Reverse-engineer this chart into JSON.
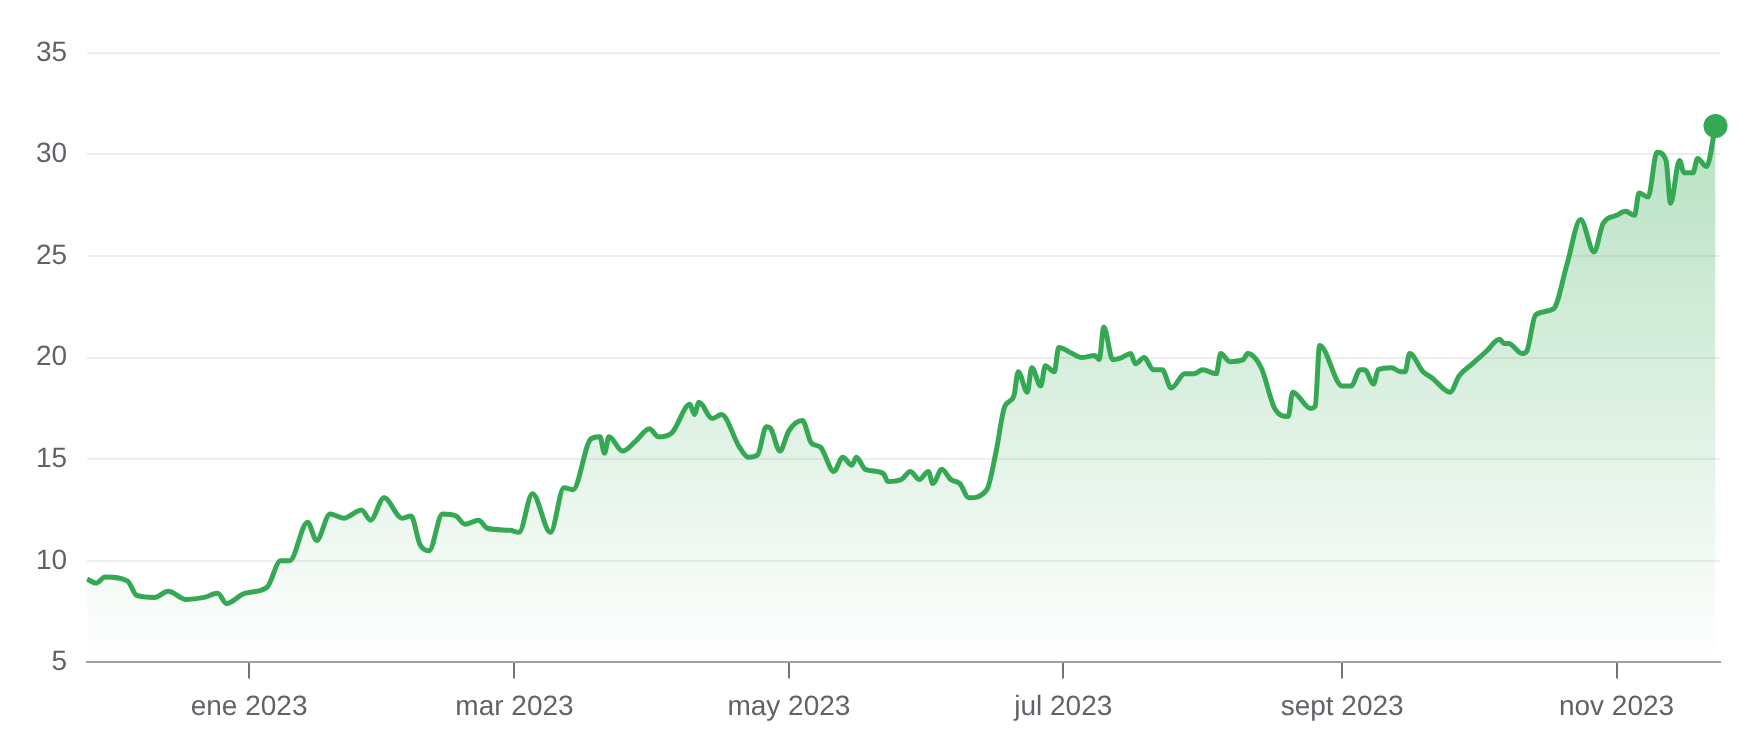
{
  "chart_data": {
    "type": "area",
    "x": [
      "2022-11-26",
      "2022-11-28",
      "2022-11-30",
      "2022-12-05",
      "2022-12-07",
      "2022-12-11",
      "2022-12-14",
      "2022-12-18",
      "2022-12-22",
      "2022-12-25",
      "2022-12-27",
      "2022-12-31",
      "2023-01-05",
      "2023-01-08",
      "2023-01-10",
      "2023-01-14",
      "2023-01-16",
      "2023-01-19",
      "2023-01-22",
      "2023-01-26",
      "2023-01-28",
      "2023-01-31",
      "2023-02-04",
      "2023-02-06",
      "2023-02-08",
      "2023-02-10",
      "2023-02-13",
      "2023-02-16",
      "2023-02-18",
      "2023-02-21",
      "2023-02-23",
      "2023-02-28",
      "2023-03-02",
      "2023-03-05",
      "2023-03-09",
      "2023-03-12",
      "2023-03-14",
      "2023-03-18",
      "2023-03-20",
      "2023-03-21",
      "2023-03-22",
      "2023-03-25",
      "2023-03-28",
      "2023-03-31",
      "2023-04-02",
      "2023-04-05",
      "2023-04-09",
      "2023-04-10",
      "2023-04-11",
      "2023-04-14",
      "2023-04-16",
      "2023-04-20",
      "2023-04-22",
      "2023-04-24",
      "2023-04-26",
      "2023-04-27",
      "2023-04-29",
      "2023-05-01",
      "2023-05-04",
      "2023-05-06",
      "2023-05-08",
      "2023-05-11",
      "2023-05-13",
      "2023-05-15",
      "2023-05-16",
      "2023-05-18",
      "2023-05-22",
      "2023-05-23",
      "2023-05-26",
      "2023-05-28",
      "2023-05-30",
      "2023-06-01",
      "2023-06-02",
      "2023-06-04",
      "2023-06-06",
      "2023-06-08",
      "2023-06-10",
      "2023-06-14",
      "2023-06-16",
      "2023-06-18",
      "2023-06-20",
      "2023-06-21",
      "2023-06-23",
      "2023-06-24",
      "2023-06-26",
      "2023-06-27",
      "2023-06-29",
      "2023-06-30",
      "2023-07-03",
      "2023-07-05",
      "2023-07-08",
      "2023-07-09",
      "2023-07-10",
      "2023-07-12",
      "2023-07-14",
      "2023-07-16",
      "2023-07-17",
      "2023-07-19",
      "2023-07-21",
      "2023-07-23",
      "2023-07-25",
      "2023-07-28",
      "2023-07-30",
      "2023-08-01",
      "2023-08-04",
      "2023-08-05",
      "2023-08-07",
      "2023-08-10",
      "2023-08-11",
      "2023-08-14",
      "2023-08-17",
      "2023-08-20",
      "2023-08-21",
      "2023-08-25",
      "2023-08-26",
      "2023-08-27",
      "2023-09-01",
      "2023-09-03",
      "2023-09-05",
      "2023-09-06",
      "2023-09-08",
      "2023-09-09",
      "2023-09-12",
      "2023-09-14",
      "2023-09-15",
      "2023-09-16",
      "2023-09-19",
      "2023-09-21",
      "2023-09-25",
      "2023-09-27",
      "2023-09-30",
      "2023-10-03",
      "2023-10-06",
      "2023-10-07",
      "2023-10-08",
      "2023-10-11",
      "2023-10-12",
      "2023-10-14",
      "2023-10-18",
      "2023-10-21",
      "2023-10-24",
      "2023-10-27",
      "2023-10-29",
      "2023-11-01",
      "2023-11-03",
      "2023-11-05",
      "2023-11-06",
      "2023-11-08",
      "2023-11-10",
      "2023-11-12",
      "2023-11-13",
      "2023-11-15",
      "2023-11-16",
      "2023-11-18",
      "2023-11-19",
      "2023-11-21",
      "2023-11-23"
    ],
    "series": [
      {
        "color": "#34a853",
        "marker": "none",
        "values": [
          9.1,
          8.9,
          9.2,
          9.0,
          8.3,
          8.2,
          8.5,
          8.1,
          8.2,
          8.4,
          7.9,
          8.4,
          8.7,
          10.0,
          10.0,
          11.9,
          11.0,
          12.3,
          12.1,
          12.5,
          12.0,
          13.1,
          12.1,
          12.2,
          10.8,
          10.5,
          12.3,
          12.2,
          11.8,
          12.0,
          11.6,
          11.5,
          11.4,
          13.3,
          11.4,
          13.6,
          13.5,
          16.0,
          16.1,
          15.3,
          16.1,
          15.4,
          15.9,
          16.5,
          16.1,
          16.3,
          17.7,
          17.2,
          17.8,
          17.0,
          17.2,
          15.6,
          15.1,
          15.2,
          16.6,
          16.5,
          15.4,
          16.4,
          16.9,
          15.8,
          15.6,
          14.4,
          15.1,
          14.7,
          15.1,
          14.5,
          14.3,
          13.9,
          14.0,
          14.4,
          14.0,
          14.4,
          13.8,
          14.5,
          14.0,
          13.8,
          13.1,
          13.5,
          15.3,
          17.6,
          18.1,
          19.3,
          18.3,
          19.5,
          18.6,
          19.6,
          19.3,
          20.5,
          20.2,
          20.0,
          20.1,
          19.9,
          21.5,
          19.9,
          20.0,
          20.2,
          19.7,
          20.0,
          19.4,
          19.4,
          18.5,
          19.2,
          19.2,
          19.4,
          19.2,
          20.2,
          19.8,
          19.9,
          20.2,
          19.5,
          17.5,
          17.1,
          18.3,
          17.5,
          17.6,
          20.6,
          18.6,
          18.6,
          19.4,
          19.4,
          18.7,
          19.4,
          19.5,
          19.3,
          19.3,
          20.2,
          19.3,
          19.0,
          18.3,
          19.1,
          19.7,
          20.3,
          20.9,
          20.7,
          20.7,
          20.2,
          20.3,
          22.1,
          22.4,
          24.6,
          26.8,
          25.2,
          26.6,
          27.0,
          27.2,
          27.0,
          28.1,
          27.9,
          30.1,
          29.7,
          27.6,
          29.7,
          29.1,
          29.1,
          29.8,
          29.4,
          31.4
        ]
      },
      {
        "type": "scatter",
        "color": "#34a853",
        "marker": "circle",
        "x": [
          "2023-11-23"
        ],
        "values": [
          31.4
        ]
      }
    ],
    "xlim": [
      "2022-11-26",
      "2023-11-24"
    ],
    "xticks": [
      {
        "value": "2023-01-01",
        "label": "ene 2023"
      },
      {
        "value": "2023-03-01",
        "label": "mar 2023"
      },
      {
        "value": "2023-05-01",
        "label": "may 2023"
      },
      {
        "value": "2023-07-01",
        "label": "jul 2023"
      },
      {
        "value": "2023-09-01",
        "label": "sept 2023"
      },
      {
        "value": "2023-11-01",
        "label": "nov 2023"
      }
    ],
    "ylim": [
      5,
      35
    ],
    "yticks": [
      5,
      10,
      15,
      20,
      25,
      30,
      35
    ],
    "grid": "y",
    "legend": false
  }
}
